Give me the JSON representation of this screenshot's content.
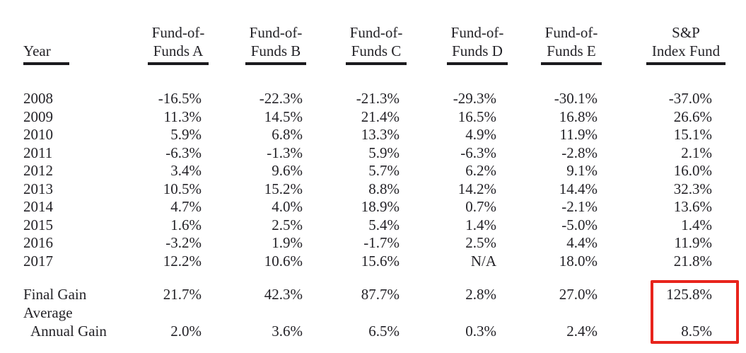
{
  "header": {
    "year_label": "Year",
    "columns": [
      {
        "line1": "Fund-of-",
        "line2": "Funds A"
      },
      {
        "line1": "Fund-of-",
        "line2": "Funds B"
      },
      {
        "line1": "Fund-of-",
        "line2": "Funds C"
      },
      {
        "line1": "Fund-of-",
        "line2": "Funds D"
      },
      {
        "line1": "Fund-of-",
        "line2": "Funds E"
      },
      {
        "line1": "S&P",
        "line2": "Index Fund"
      }
    ]
  },
  "table": {
    "rows": [
      {
        "year": "2008",
        "values": [
          "-16.5%",
          "-22.3%",
          "-21.3%",
          "-29.3%",
          "-30.1%",
          "-37.0%"
        ]
      },
      {
        "year": "2009",
        "values": [
          "11.3%",
          "14.5%",
          "21.4%",
          "16.5%",
          "16.8%",
          "26.6%"
        ]
      },
      {
        "year": "2010",
        "values": [
          "5.9%",
          "6.8%",
          "13.3%",
          "4.9%",
          "11.9%",
          "15.1%"
        ]
      },
      {
        "year": "2011",
        "values": [
          "-6.3%",
          "-1.3%",
          "5.9%",
          "-6.3%",
          "-2.8%",
          "2.1%"
        ]
      },
      {
        "year": "2012",
        "values": [
          "3.4%",
          "9.6%",
          "5.7%",
          "6.2%",
          "9.1%",
          "16.0%"
        ]
      },
      {
        "year": "2013",
        "values": [
          "10.5%",
          "15.2%",
          "8.8%",
          "14.2%",
          "14.4%",
          "32.3%"
        ]
      },
      {
        "year": "2014",
        "values": [
          "4.7%",
          "4.0%",
          "18.9%",
          "0.7%",
          "-2.1%",
          "13.6%"
        ]
      },
      {
        "year": "2015",
        "values": [
          "1.6%",
          "2.5%",
          "5.4%",
          "1.4%",
          "-5.0%",
          "1.4%"
        ]
      },
      {
        "year": "2016",
        "values": [
          "-3.2%",
          "1.9%",
          "-1.7%",
          "2.5%",
          "4.4%",
          "11.9%"
        ]
      },
      {
        "year": "2017",
        "values": [
          "12.2%",
          "10.6%",
          "15.6%",
          "N/A",
          "18.0%",
          "21.8%"
        ]
      }
    ]
  },
  "summary": {
    "final_gain_label": "Final Gain",
    "final_gain": [
      "21.7%",
      "42.3%",
      "87.7%",
      "2.8%",
      "27.0%",
      "125.8%"
    ],
    "average_label": "Average",
    "annual_gain_label": "Annual Gain",
    "average_annual_gain": [
      "2.0%",
      "3.6%",
      "6.5%",
      "0.3%",
      "2.4%",
      "8.5%"
    ]
  },
  "highlight": {
    "color": "#e8241c",
    "target": "S&P Index Fund Final Gain and Average Annual Gain"
  },
  "chart_data": {
    "type": "table",
    "columns": [
      "Year",
      "Fund-of-Funds A",
      "Fund-of-Funds B",
      "Fund-of-Funds C",
      "Fund-of-Funds D",
      "Fund-of-Funds E",
      "S&P Index Fund"
    ],
    "units": "percent annual return",
    "rows": [
      [
        "2008",
        -16.5,
        -22.3,
        -21.3,
        -29.3,
        -30.1,
        -37.0
      ],
      [
        "2009",
        11.3,
        14.5,
        21.4,
        16.5,
        16.8,
        26.6
      ],
      [
        "2010",
        5.9,
        6.8,
        13.3,
        4.9,
        11.9,
        15.1
      ],
      [
        "2011",
        -6.3,
        -1.3,
        5.9,
        -6.3,
        -2.8,
        2.1
      ],
      [
        "2012",
        3.4,
        9.6,
        5.7,
        6.2,
        9.1,
        16.0
      ],
      [
        "2013",
        10.5,
        15.2,
        8.8,
        14.2,
        14.4,
        32.3
      ],
      [
        "2014",
        4.7,
        4.0,
        18.9,
        0.7,
        -2.1,
        13.6
      ],
      [
        "2015",
        1.6,
        2.5,
        5.4,
        1.4,
        -5.0,
        1.4
      ],
      [
        "2016",
        -3.2,
        1.9,
        -1.7,
        2.5,
        4.4,
        11.9
      ],
      [
        "2017",
        12.2,
        10.6,
        15.6,
        null,
        18.0,
        21.8
      ]
    ],
    "summary_rows": [
      [
        "Final Gain",
        21.7,
        42.3,
        87.7,
        2.8,
        27.0,
        125.8
      ],
      [
        "Average Annual Gain",
        2.0,
        3.6,
        6.5,
        0.3,
        2.4,
        8.5
      ]
    ],
    "annotations": [
      "Red box outlines S&P Index Fund results: Final Gain 125.8% and Average Annual Gain 8.5%"
    ]
  }
}
